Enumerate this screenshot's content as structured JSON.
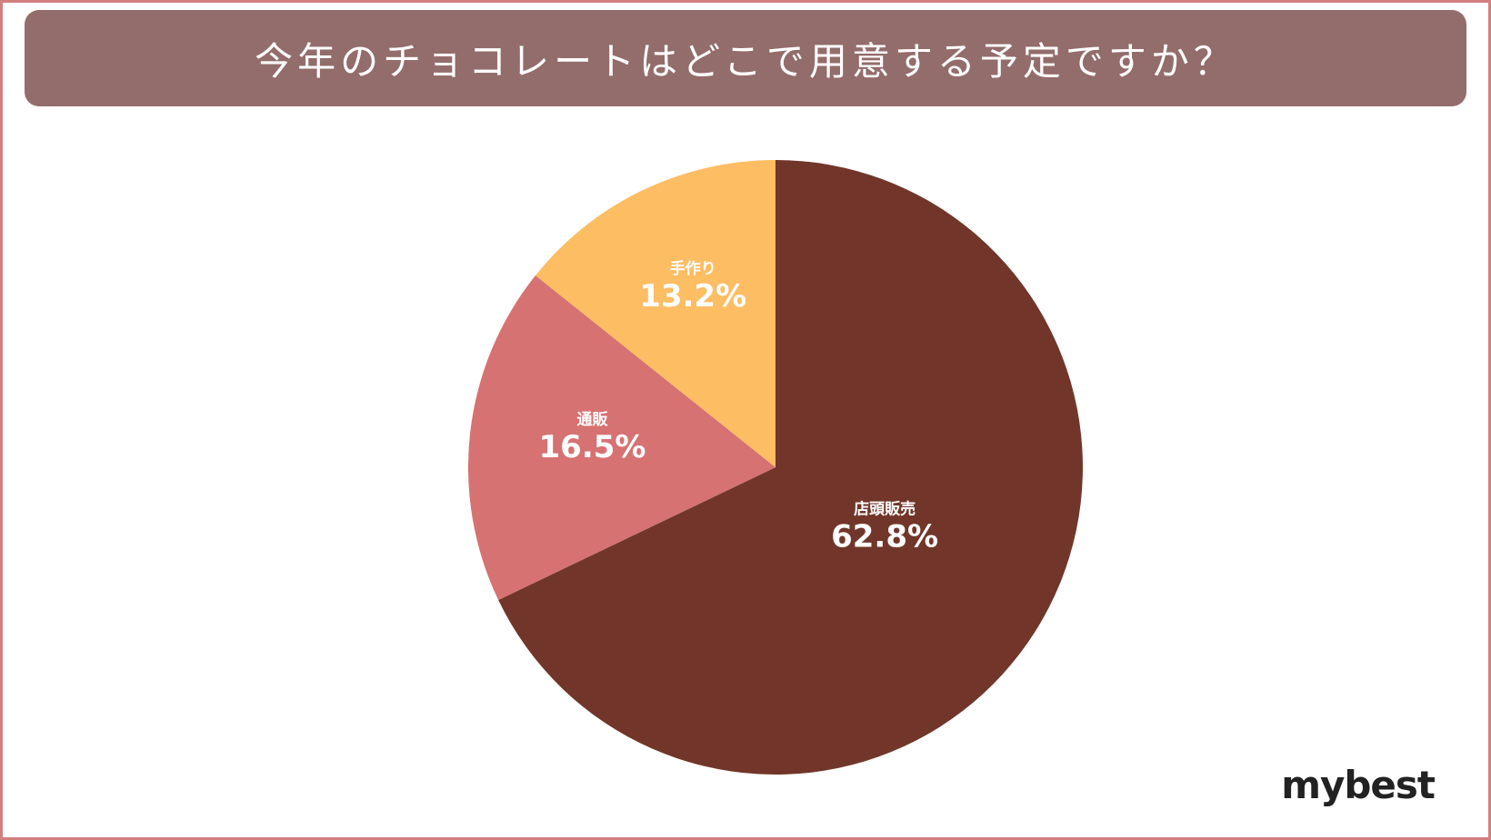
{
  "title": "今年のチョコレートはどこで用意する予定ですか？",
  "brand": "mybest",
  "colors": {
    "frame": "#d17f7f",
    "title_bg": "#936d6b",
    "slices": [
      "#713629",
      "#d67272",
      "#fdbd63"
    ]
  },
  "chart_data": {
    "type": "pie",
    "title": "今年のチョコレートはどこで用意する予定ですか？",
    "categories": [
      "店頭販売",
      "通販",
      "手作り"
    ],
    "values": [
      62.8,
      16.5,
      13.2
    ],
    "labels": [
      "62.8%",
      "16.5%",
      "13.2%"
    ],
    "start": "12 o'clock",
    "direction": "clockwise"
  }
}
